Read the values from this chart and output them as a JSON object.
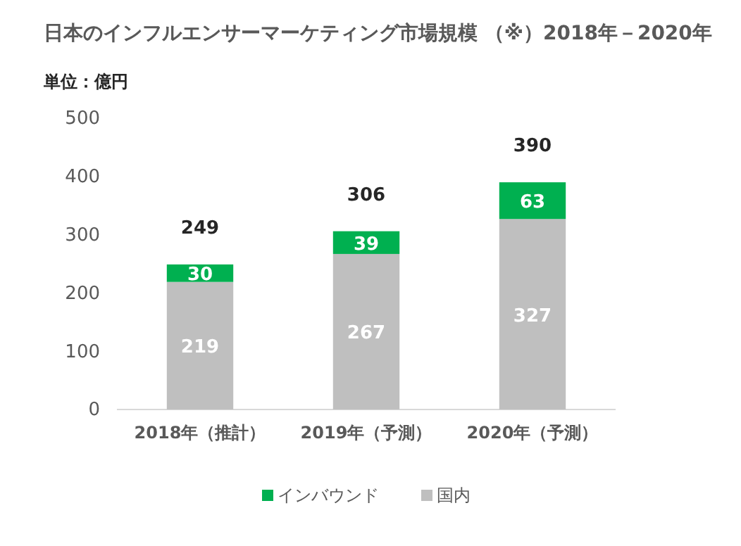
{
  "chart_data": {
    "type": "bar",
    "title": "日本のインフルエンサーマーケティング市場規模 （※）2018年－2020年",
    "ylabel": "単位：億円",
    "categories": [
      "2018年（推計）",
      "2019年（予測）",
      "2020年（予測）"
    ],
    "stacked": true,
    "series": [
      {
        "name": "国内",
        "color": "#bfbfbf",
        "values": [
          219,
          267,
          327
        ]
      },
      {
        "name": "インバウンド",
        "color": "#00b050",
        "values": [
          30,
          39,
          63
        ]
      }
    ],
    "ylim": [
      0,
      500
    ],
    "yticks": [
      0,
      100,
      200,
      300,
      400,
      500
    ],
    "grid": false,
    "legend": "bottom",
    "data_labels": true,
    "totals": [
      "249",
      "306",
      "390"
    ]
  }
}
